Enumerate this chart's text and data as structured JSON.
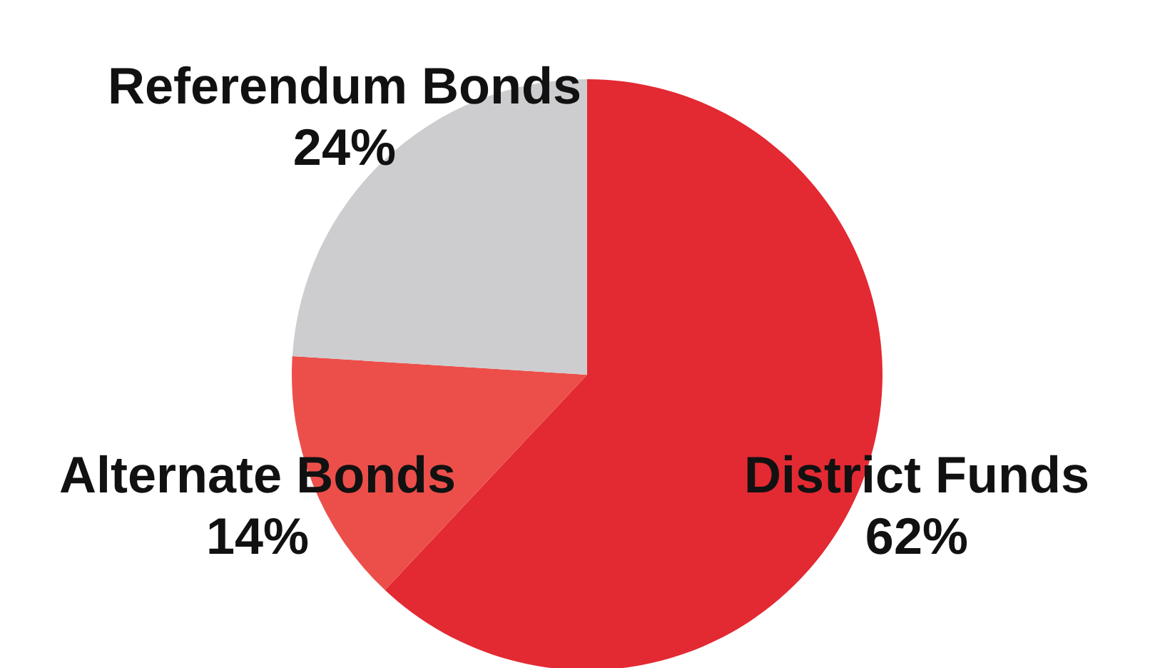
{
  "chart_data": {
    "type": "pie",
    "categories": [
      "District Funds",
      "Alternate Bonds",
      "Referendum Bonds"
    ],
    "values": [
      62,
      14,
      24
    ],
    "colors": [
      "#e32932",
      "#ec4f4a",
      "#cdcdd0"
    ],
    "value_labels": [
      "62%",
      "14%",
      "24%"
    ]
  }
}
